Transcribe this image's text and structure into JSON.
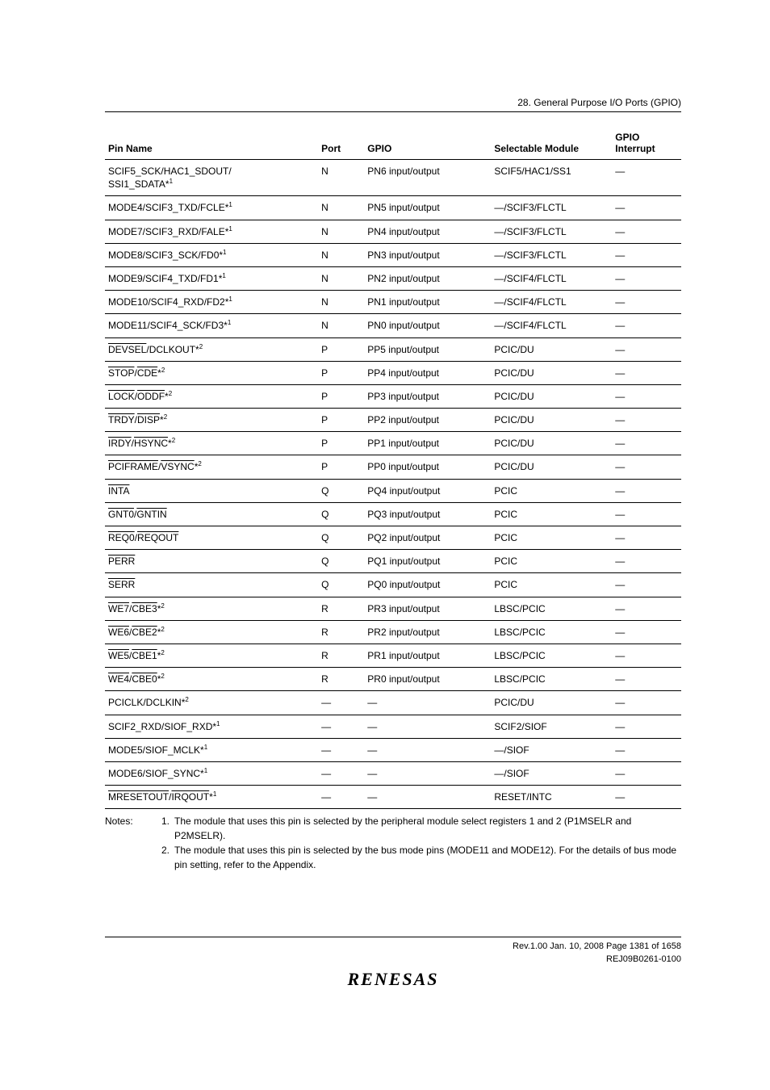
{
  "header": {
    "section": "28.   General Purpose I/O Ports (GPIO)"
  },
  "table": {
    "columns": {
      "pin": "Pin Name",
      "port": "Port",
      "gpio": "GPIO",
      "module": "Selectable Module",
      "interrupt_l1": "GPIO",
      "interrupt_l2": "Interrupt"
    },
    "rows": [
      {
        "pin_html": "SCIF5_SCK/HAC1_SDOUT/<br>SSI1_SDATA*<span class='sup'>1</span>",
        "port": "N",
        "gpio": "PN6 input/output",
        "module": "SCIF5/HAC1/SS1",
        "int": "—"
      },
      {
        "pin_html": "MODE4/SCIF3_TXD/FCLE*<span class='sup'>1</span>",
        "port": "N",
        "gpio": "PN5 input/output",
        "module": "—/SCIF3/FLCTL",
        "int": "—"
      },
      {
        "pin_html": "MODE7/SCIF3_RXD/FALE*<span class='sup'>1</span>",
        "port": "N",
        "gpio": "PN4 input/output",
        "module": "—/SCIF3/FLCTL",
        "int": "—"
      },
      {
        "pin_html": "MODE8/SCIF3_SCK/FD0*<span class='sup'>1</span>",
        "port": "N",
        "gpio": "PN3 input/output",
        "module": "—/SCIF3/FLCTL",
        "int": "—"
      },
      {
        "pin_html": "MODE9/SCIF4_TXD/FD1*<span class='sup'>1</span>",
        "port": "N",
        "gpio": "PN2 input/output",
        "module": "—/SCIF4/FLCTL",
        "int": "—"
      },
      {
        "pin_html": "MODE10/SCIF4_RXD/FD2*<span class='sup'>1</span>",
        "port": "N",
        "gpio": "PN1 input/output",
        "module": "—/SCIF4/FLCTL",
        "int": "—"
      },
      {
        "pin_html": "MODE11/SCIF4_SCK/FD3*<span class='sup'>1</span>",
        "port": "N",
        "gpio": "PN0 input/output",
        "module": "—/SCIF4/FLCTL",
        "int": "—"
      },
      {
        "pin_html": "<span class='ovl'>DEVSEL</span>/DCLKOUT*<span class='sup'>2</span>",
        "port": "P",
        "gpio": "PP5 input/output",
        "module": "PCIC/DU",
        "int": "—"
      },
      {
        "pin_html": "<span class='ovl'>STOP</span>/<span class='ovl'>CDE</span>*<span class='sup'>2</span>",
        "port": "P",
        "gpio": "PP4 input/output",
        "module": "PCIC/DU",
        "int": "—"
      },
      {
        "pin_html": "<span class='ovl'>LOCK</span>/<span class='ovl'>ODDF</span>*<span class='sup'>2</span>",
        "port": "P",
        "gpio": "PP3 input/output",
        "module": "PCIC/DU",
        "int": "—"
      },
      {
        "pin_html": "<span class='ovl'>TRDY</span>/<span class='ovl'>DISP</span>*<span class='sup'>2</span>",
        "port": "P",
        "gpio": "PP2 input/output",
        "module": "PCIC/DU",
        "int": "—"
      },
      {
        "pin_html": "<span class='ovl'>IRDY</span>/<span class='ovl'>HSYNC</span>*<span class='sup'>2</span>",
        "port": "P",
        "gpio": "PP1 input/output",
        "module": "PCIC/DU",
        "int": "—"
      },
      {
        "pin_html": "<span class='ovl'>PCIFRAME</span>/<span class='ovl'>VSYNC</span>*<span class='sup'>2</span>",
        "port": "P",
        "gpio": "PP0 input/output",
        "module": "PCIC/DU",
        "int": "—"
      },
      {
        "pin_html": "<span class='ovl'>INTA</span>",
        "port": "Q",
        "gpio": "PQ4 input/output",
        "module": "PCIC",
        "int": "—"
      },
      {
        "pin_html": "<span class='ovl'>GNT0</span>/<span class='ovl'>GNTIN</span>",
        "port": "Q",
        "gpio": "PQ3 input/output",
        "module": "PCIC",
        "int": "—"
      },
      {
        "pin_html": "<span class='ovl'>REQ0</span>/<span class='ovl'>REQOUT</span>",
        "port": "Q",
        "gpio": "PQ2 input/output",
        "module": "PCIC",
        "int": "—"
      },
      {
        "pin_html": "<span class='ovl'>PERR</span>",
        "port": "Q",
        "gpio": "PQ1 input/output",
        "module": "PCIC",
        "int": "—"
      },
      {
        "pin_html": "<span class='ovl'>SERR</span>",
        "port": "Q",
        "gpio": "PQ0 input/output",
        "module": "PCIC",
        "int": "—"
      },
      {
        "pin_html": "<span class='ovl'>WE7</span>/<span class='ovl'>CBE3</span>*<span class='sup'>2</span>",
        "port": "R",
        "gpio": "PR3 input/output",
        "module": "LBSC/PCIC",
        "int": "—"
      },
      {
        "pin_html": "<span class='ovl'>WE6</span>/<span class='ovl'>CBE2</span>*<span class='sup'>2</span>",
        "port": "R",
        "gpio": "PR2 input/output",
        "module": "LBSC/PCIC",
        "int": "—"
      },
      {
        "pin_html": "<span class='ovl'>WE5</span>/<span class='ovl'>CBE1</span>*<span class='sup'>2</span>",
        "port": "R",
        "gpio": "PR1 input/output",
        "module": "LBSC/PCIC",
        "int": "—"
      },
      {
        "pin_html": "<span class='ovl'>WE4</span>/<span class='ovl'>CBE0</span>*<span class='sup'>2</span>",
        "port": "R",
        "gpio": "PR0 input/output",
        "module": "LBSC/PCIC",
        "int": "—"
      },
      {
        "pin_html": "PCICLK/DCLKIN*<span class='sup'>2</span>",
        "port": "—",
        "gpio": "—",
        "module": "PCIC/DU",
        "int": "—"
      },
      {
        "pin_html": "SCIF2_RXD/SIOF_RXD*<span class='sup'>1</span>",
        "port": "—",
        "gpio": "—",
        "module": "SCIF2/SIOF",
        "int": "—"
      },
      {
        "pin_html": "MODE5/SIOF_MCLK*<span class='sup'>1</span>",
        "port": "—",
        "gpio": "—",
        "module": "—/SIOF",
        "int": "—"
      },
      {
        "pin_html": "MODE6/SIOF_SYNC*<span class='sup'>1</span>",
        "port": "—",
        "gpio": "—",
        "module": "—/SIOF",
        "int": "—"
      },
      {
        "pin_html": "<span class='ovl'>MRESETOUT</span>/<span class='ovl'>IRQOUT</span>*<span class='sup'>1</span>",
        "port": "—",
        "gpio": "—",
        "module": "RESET/INTC",
        "int": "—"
      }
    ]
  },
  "notes": {
    "label": "Notes:",
    "items": [
      {
        "num": "1.",
        "text": "The module that uses this pin is selected by the peripheral module select registers 1 and 2 (P1MSELR and P2MSELR)."
      },
      {
        "num": "2.",
        "text": "The module that uses this pin is selected by the bus mode pins (MODE11 and MODE12). For the details of bus mode pin setting, refer to the Appendix."
      }
    ]
  },
  "footer": {
    "line1": "Rev.1.00  Jan. 10, 2008  Page 1381 of 1658",
    "line2": "REJ09B0261-0100",
    "logo": "RENESAS"
  }
}
